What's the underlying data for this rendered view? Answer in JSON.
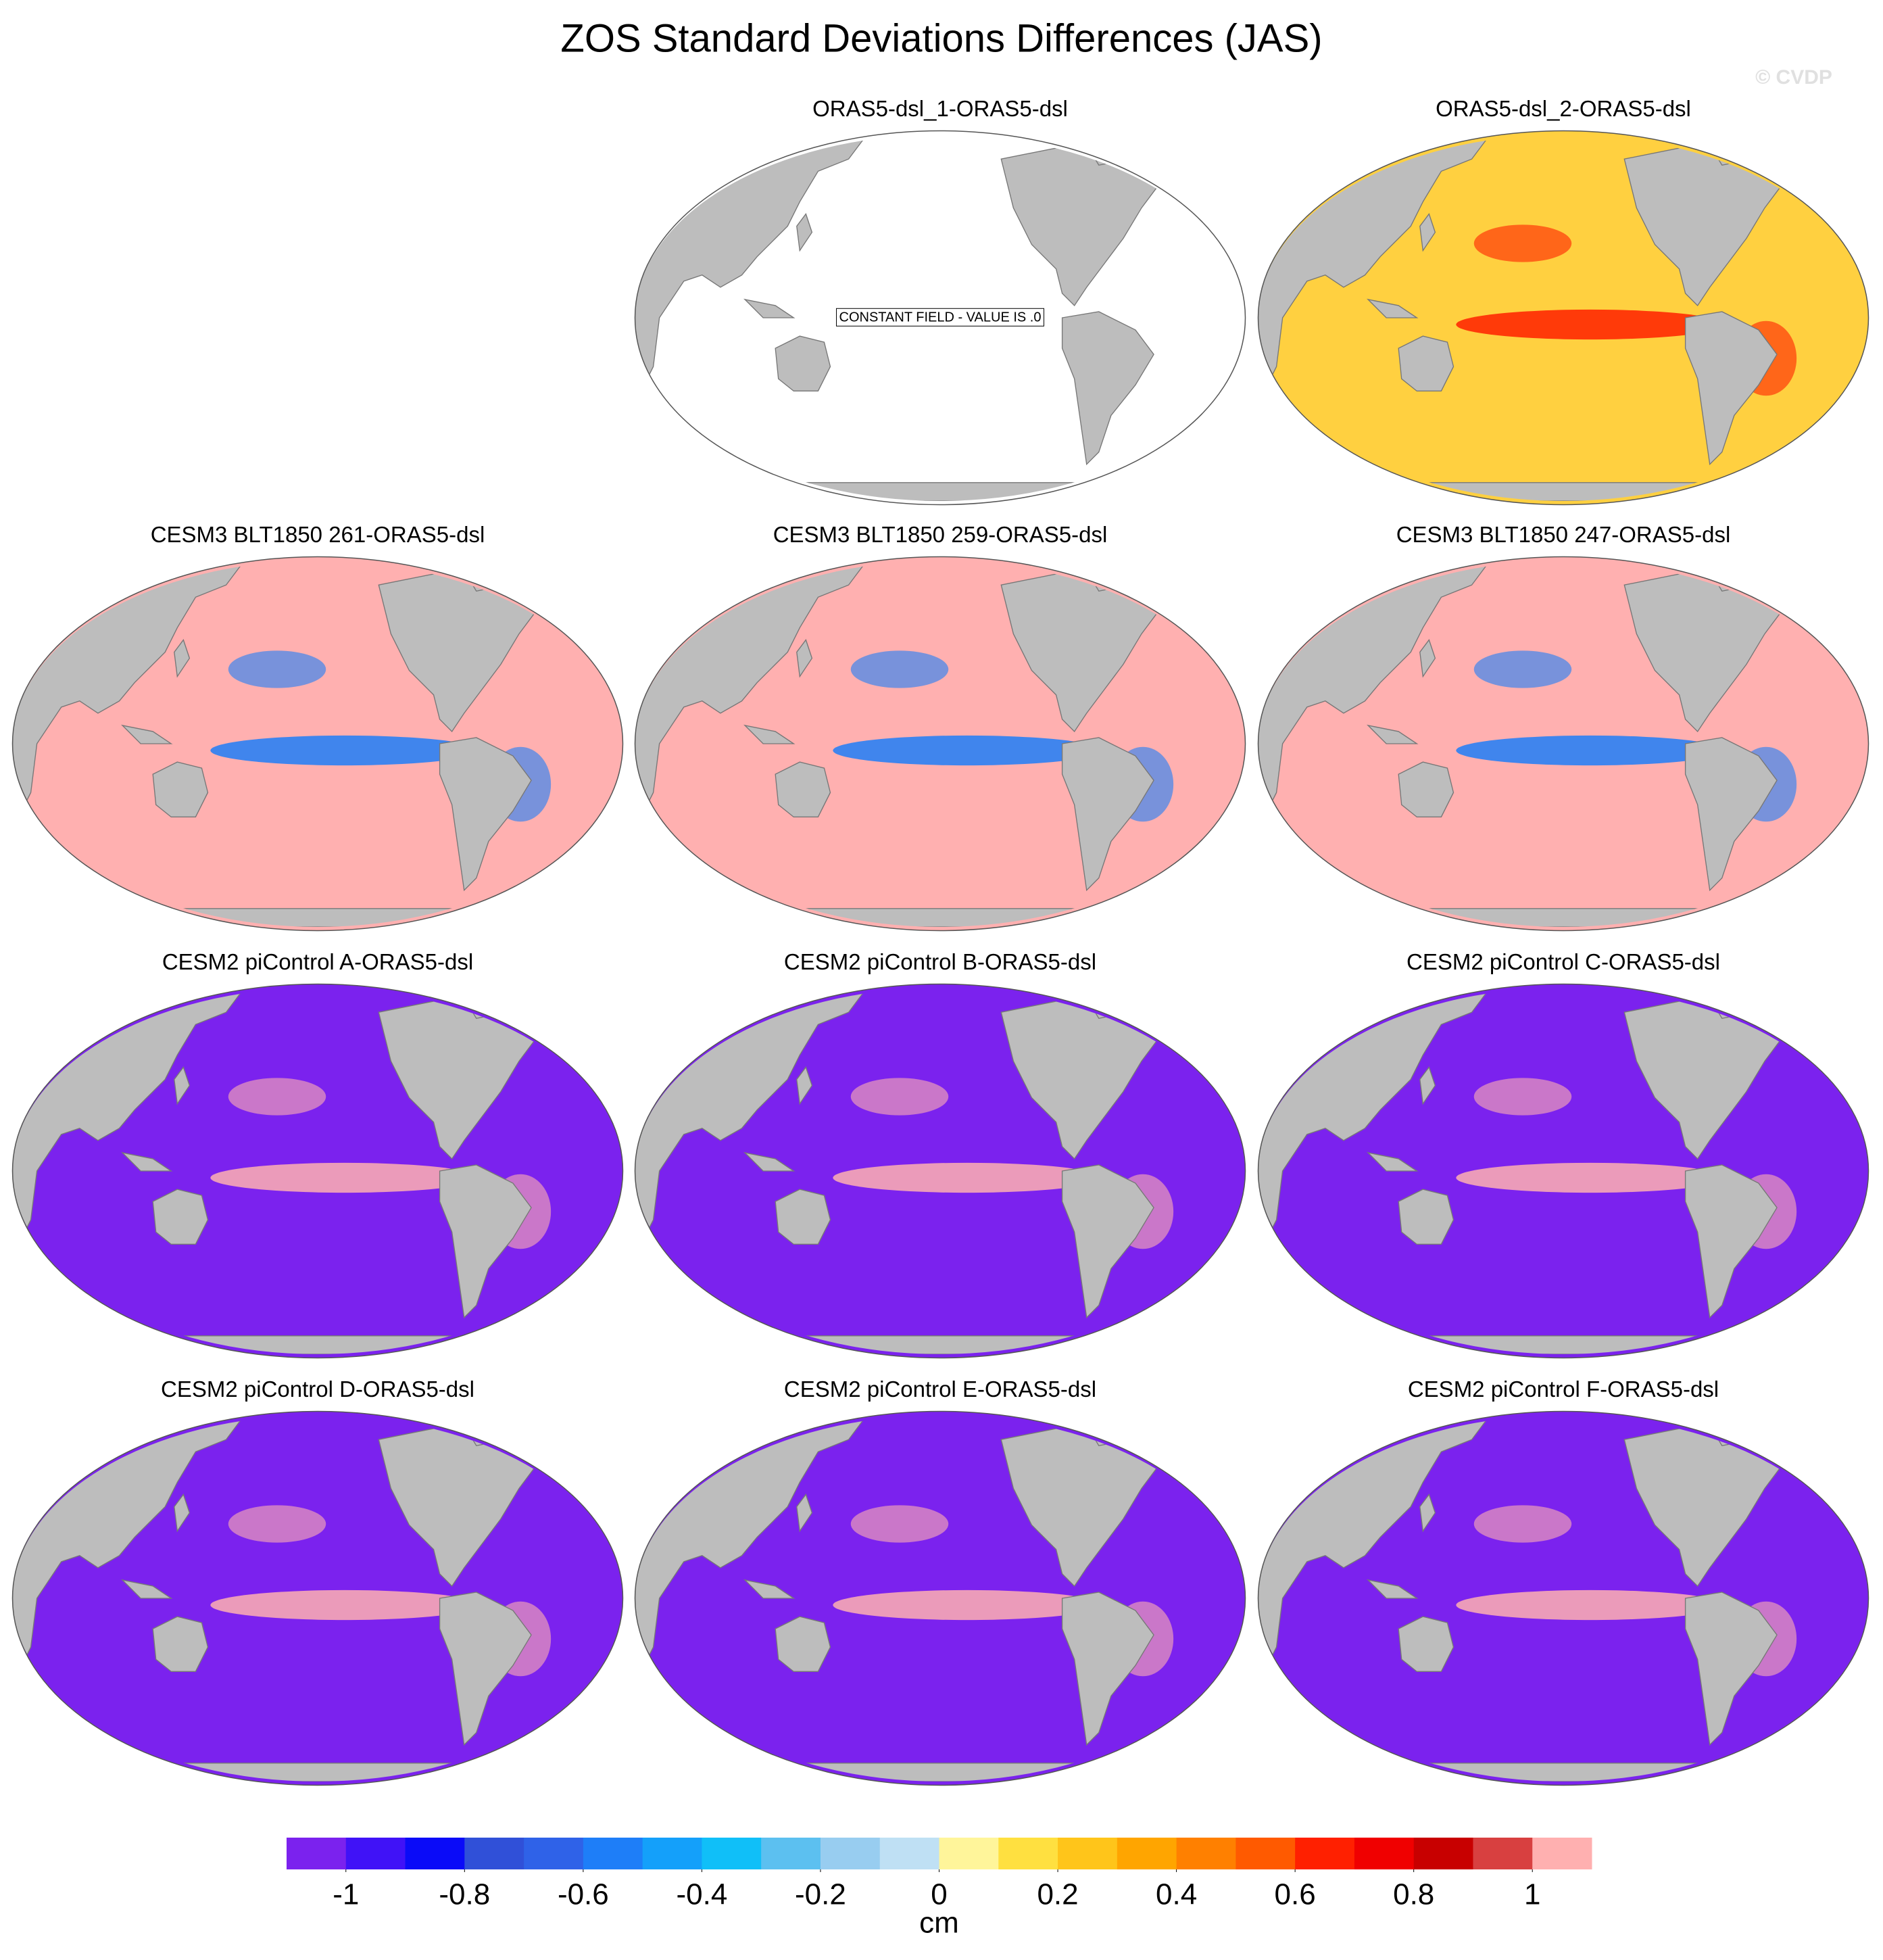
{
  "title": "ZOS Standard Deviations Differences (JAS)",
  "watermark": "© CVDP",
  "panels": [
    {
      "title": "ORAS5-dsl_1-ORAS5-dsl",
      "ocean_color": "#ffffff",
      "note": "CONSTANT FIELD - VALUE IS .0"
    },
    {
      "title": "ORAS5-dsl_2-ORAS5-dsl",
      "ocean_color": "#ffd040",
      "band_color": "#ff2000"
    },
    {
      "title": "CESM3 BLT1850 261-ORAS5-dsl",
      "ocean_color": "#ffb0b0",
      "band_color": "#1e7ef8"
    },
    {
      "title": "CESM3 BLT1850 259-ORAS5-dsl",
      "ocean_color": "#ffb0b0",
      "band_color": "#1e7ef8"
    },
    {
      "title": "CESM3 BLT1850 247-ORAS5-dsl",
      "ocean_color": "#ffb0b0",
      "band_color": "#1e7ef8"
    },
    {
      "title": "CESM2 piControl A-ORAS5-dsl",
      "ocean_color": "#7b22ee",
      "band_color": "#ffb0b0"
    },
    {
      "title": "CESM2 piControl B-ORAS5-dsl",
      "ocean_color": "#7b22ee",
      "band_color": "#ffb0b0"
    },
    {
      "title": "CESM2 piControl C-ORAS5-dsl",
      "ocean_color": "#7b22ee",
      "band_color": "#ffb0b0"
    },
    {
      "title": "CESM2 piControl D-ORAS5-dsl",
      "ocean_color": "#7b22ee",
      "band_color": "#ffb0b0"
    },
    {
      "title": "CESM2 piControl E-ORAS5-dsl",
      "ocean_color": "#7b22ee",
      "band_color": "#ffb0b0"
    },
    {
      "title": "CESM2 piControl F-ORAS5-dsl",
      "ocean_color": "#7b22ee",
      "band_color": "#ffb0b0"
    }
  ],
  "colorbar": {
    "colors": [
      "#7b22ee",
      "#4012f7",
      "#0a0bf8",
      "#3050d8",
      "#2f62e8",
      "#1e7ef8",
      "#14a0fa",
      "#10bff8",
      "#5cc0f0",
      "#98cdf0",
      "#bfe0f4",
      "#fff59a",
      "#ffe040",
      "#ffc51a",
      "#ffa500",
      "#ff8000",
      "#ff5a00",
      "#ff2000",
      "#f00000",
      "#c80000",
      "#d84040",
      "#ffb0b0"
    ],
    "range": [
      -1.1,
      1.1
    ],
    "ticks": [
      -1,
      -0.8,
      -0.6,
      -0.4,
      -0.2,
      0,
      0.2,
      0.4,
      0.6,
      0.8,
      1
    ],
    "label": "cm"
  }
}
